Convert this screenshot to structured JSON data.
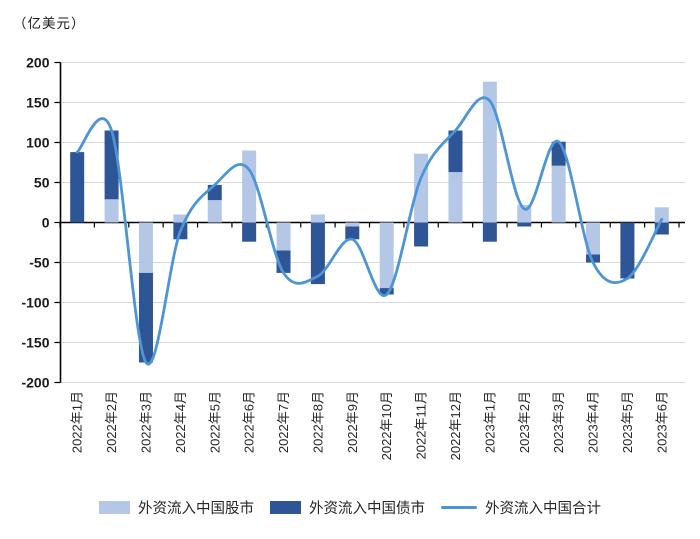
{
  "chart": {
    "unit_label": "（亿美元）"
  },
  "chart_data": {
    "type": "bar",
    "subtype": "stacked-bars-with-line-overlay",
    "title": "",
    "xlabel": "",
    "ylabel": "（亿美元）",
    "ylim": [
      -200,
      200
    ],
    "ytick_step": 50,
    "grid": true,
    "legend_position": "bottom",
    "categories": [
      "2022年1月",
      "2022年2月",
      "2022年3月",
      "2022年4月",
      "2022年5月",
      "2022年6月",
      "2022年7月",
      "2022年8月",
      "2022年9月",
      "2022年10月",
      "2022年11月",
      "2022年12月",
      "2023年1月",
      "2023年2月",
      "2023年3月",
      "2023年4月",
      "2023年5月",
      "2023年6月"
    ],
    "series": [
      {
        "name": "外资流入中国股市",
        "type": "bar",
        "stacked": true,
        "color": "#B4C7E7",
        "values": [
          0,
          29,
          -63,
          10,
          28,
          90,
          -35,
          10,
          -5,
          -82,
          86,
          63,
          176,
          22,
          71,
          -40,
          0,
          19
        ]
      },
      {
        "name": "外资流入中国债市",
        "type": "bar",
        "stacked": true,
        "color": "#2E5596",
        "values": [
          88,
          86,
          -112,
          -21,
          19,
          -24,
          -28,
          -77,
          -16,
          -8,
          -30,
          52,
          -24,
          -5,
          30,
          -10,
          -70,
          -15
        ]
      },
      {
        "name": "外资流入中国合计",
        "type": "line",
        "color": "#4E95D6",
        "values": [
          88,
          115,
          -175,
          -11,
          47,
          66,
          -63,
          -67,
          -21,
          -90,
          56,
          115,
          152,
          17,
          101,
          -50,
          -70,
          4
        ]
      }
    ],
    "axis_color": "#000000",
    "gridline_color": "#D9D9D9",
    "text_color": "#262626"
  }
}
